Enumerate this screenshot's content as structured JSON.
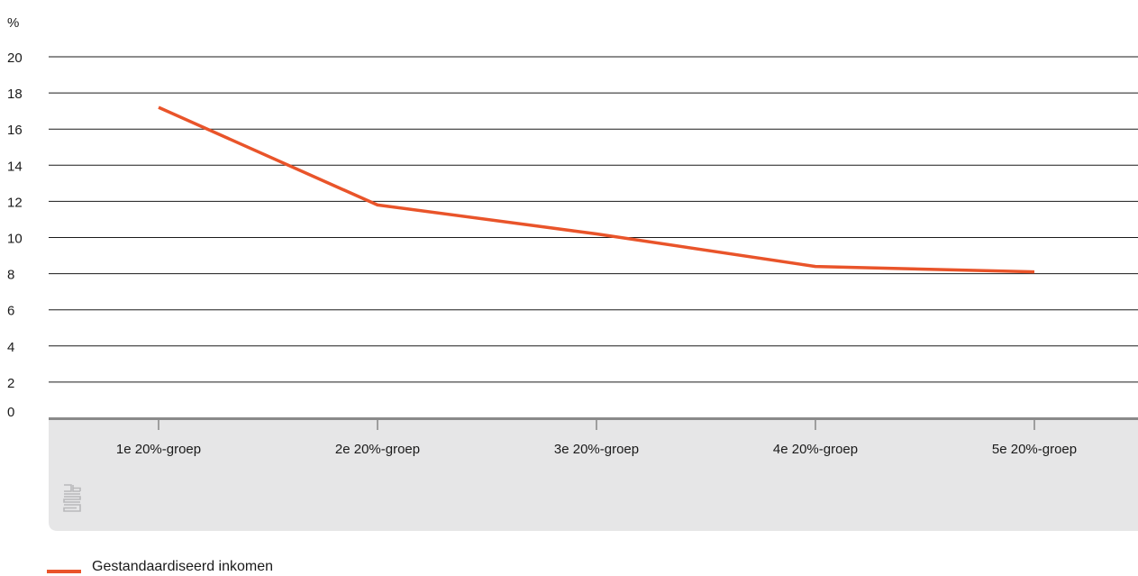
{
  "chart_data": {
    "type": "line",
    "ylabel": "%",
    "ylim": [
      0,
      20
    ],
    "yticks": [
      "0",
      "2",
      "4",
      "6",
      "8",
      "10",
      "12",
      "14",
      "16",
      "18",
      "20"
    ],
    "categories": [
      "1e 20%-groep",
      "2e 20%-groep",
      "3e 20%-groep",
      "4e 20%-groep",
      "5e 20%-groep"
    ],
    "series": [
      {
        "name": "Gestandaardiseerd inkomen",
        "values": [
          17.2,
          11.8,
          10.2,
          8.4,
          8.1
        ],
        "color": "#e9542a"
      }
    ],
    "grid": true,
    "legend_position": "bottom-left"
  },
  "logo": {
    "icon": "cbs-logo-icon"
  },
  "colors": {
    "series": "#e9542a",
    "axis_band": "#e6e6e7",
    "axis_line": "#8a8a8a",
    "grid": "#1a1a1a"
  }
}
